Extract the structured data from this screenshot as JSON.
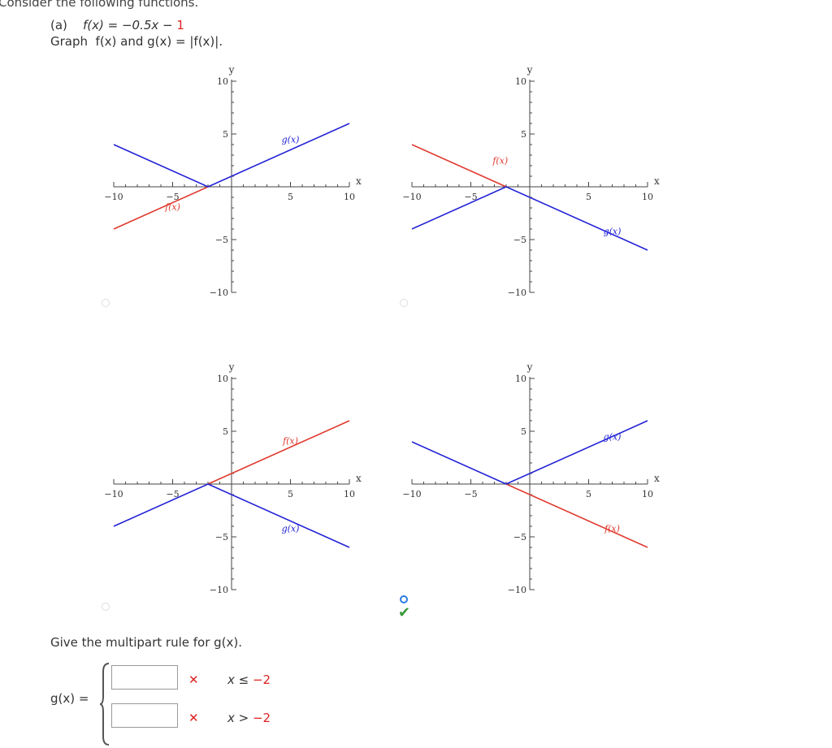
{
  "question": {
    "intro": "Consider the following functions.",
    "part_label": "(a)",
    "function_text": "f(x) = −0.5x − ",
    "function_highlight": "1",
    "instruction": "Graph  f(x) and g(x) = |f(x)|."
  },
  "graph_options": [
    {
      "id": "A",
      "selected": false,
      "chart_data": {
        "type": "line",
        "xlim": [
          -10,
          10
        ],
        "ylim": [
          -10,
          10
        ],
        "xlabel": "x",
        "ylabel": "y",
        "x_ticks": [
          "−10",
          "−5",
          "5",
          "10"
        ],
        "y_ticks": [
          "10",
          "5",
          "−5",
          "−10"
        ],
        "series": [
          {
            "name": "f(x)",
            "color": "#e03a2f",
            "points": [
              [
                -10,
                -4
              ],
              [
                -2,
                0
              ]
            ],
            "label_at": [
              -5,
              -2.2
            ]
          },
          {
            "name": "g(x)",
            "color": "#2323d6",
            "points": [
              [
                -10,
                4
              ],
              [
                -2,
                0
              ],
              [
                10,
                6
              ]
            ],
            "label_at": [
              5,
              4.2
            ]
          }
        ]
      }
    },
    {
      "id": "B",
      "selected": false,
      "chart_data": {
        "type": "line",
        "xlim": [
          -10,
          10
        ],
        "ylim": [
          -10,
          10
        ],
        "xlabel": "x",
        "ylabel": "y",
        "x_ticks": [
          "−10",
          "−5",
          "5",
          "10"
        ],
        "y_ticks": [
          "10",
          "5",
          "−5",
          "−10"
        ],
        "series": [
          {
            "name": "f(x)",
            "color": "#e03a2f",
            "points": [
              [
                -10,
                4
              ],
              [
                -2,
                0
              ]
            ],
            "label_at": [
              -2.5,
              2.2
            ]
          },
          {
            "name": "g(x)",
            "color": "#2323d6",
            "points": [
              [
                -10,
                -4
              ],
              [
                -2,
                0
              ],
              [
                10,
                -6
              ]
            ],
            "label_at": [
              7,
              -4.5
            ]
          }
        ]
      }
    },
    {
      "id": "C",
      "selected": false,
      "chart_data": {
        "type": "line",
        "xlim": [
          -10,
          10
        ],
        "ylim": [
          -10,
          10
        ],
        "xlabel": "x",
        "ylabel": "y",
        "x_ticks": [
          "−10",
          "−5",
          "5",
          "10"
        ],
        "y_ticks": [
          "10",
          "5",
          "−5",
          "−10"
        ],
        "series": [
          {
            "name": "f(x)",
            "color": "#e03a2f",
            "points": [
              [
                -2,
                0
              ],
              [
                10,
                6
              ]
            ],
            "label_at": [
              5,
              3.8
            ]
          },
          {
            "name": "g(x)",
            "color": "#2323d6",
            "points": [
              [
                -10,
                -4
              ],
              [
                -2,
                0
              ],
              [
                10,
                -6
              ]
            ],
            "label_at": [
              5,
              -4.5
            ]
          }
        ]
      }
    },
    {
      "id": "D",
      "selected": true,
      "chart_data": {
        "type": "line",
        "xlim": [
          -10,
          10
        ],
        "ylim": [
          -10,
          10
        ],
        "xlabel": "x",
        "ylabel": "y",
        "x_ticks": [
          "−10",
          "−5",
          "5",
          "10"
        ],
        "y_ticks": [
          "10",
          "5",
          "−5",
          "−10"
        ],
        "series": [
          {
            "name": "f(x)",
            "color": "#e03a2f",
            "points": [
              [
                -2,
                0
              ],
              [
                10,
                -6
              ]
            ],
            "label_at": [
              7,
              -4.5
            ]
          },
          {
            "name": "g(x)",
            "color": "#2323d6",
            "points": [
              [
                -10,
                4
              ],
              [
                -2,
                0
              ],
              [
                10,
                6
              ]
            ],
            "label_at": [
              7,
              4.2
            ]
          }
        ]
      }
    }
  ],
  "piecewise": {
    "prompt": "Give the multipart rule for  g(x).",
    "lhs": "g(x)  =",
    "rows": [
      {
        "value": "",
        "status": "incorrect",
        "mark": "✕",
        "condition": "x ≤ ",
        "condition_value": "−2"
      },
      {
        "value": "",
        "status": "incorrect",
        "mark": "✕",
        "condition": "x > ",
        "condition_value": "−2"
      }
    ]
  },
  "feedback": {
    "check_mark": "✔"
  }
}
